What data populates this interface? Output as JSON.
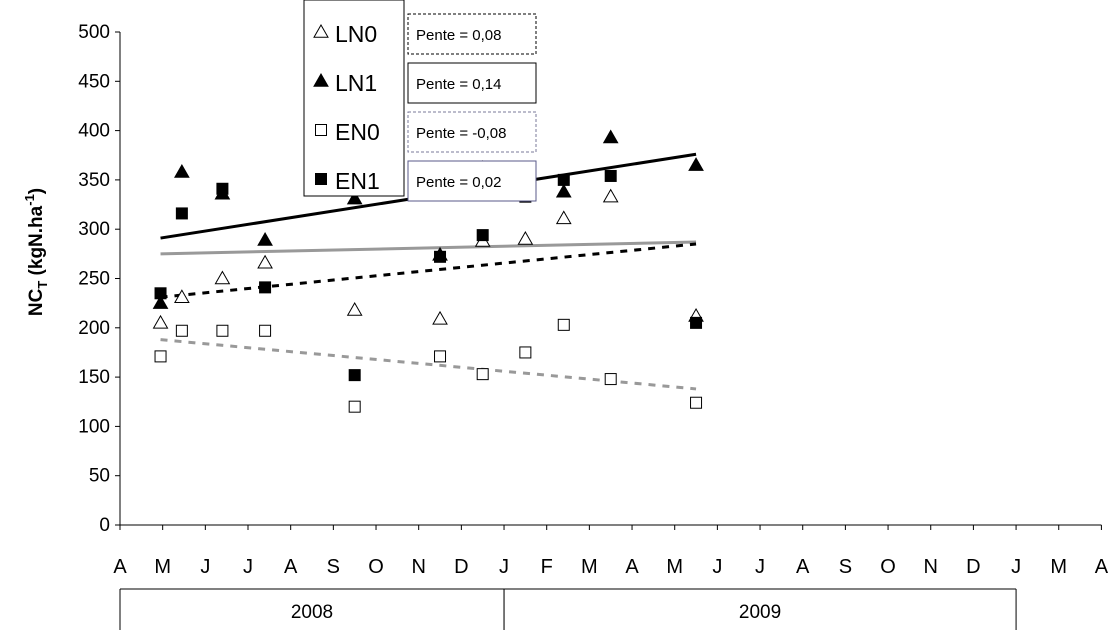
{
  "chart_data": {
    "type": "scatter",
    "ylabel_main": "NC",
    "ylabel_sub": "T",
    "ylabel_unit_open": " (kgN.ha",
    "ylabel_sup": "-1",
    "ylabel_unit_close": ")",
    "ylim": [
      0,
      500
    ],
    "y_ticks": [
      0,
      50,
      100,
      150,
      200,
      250,
      300,
      350,
      400,
      450,
      500
    ],
    "x_month_labels": [
      "A",
      "M",
      "J",
      "J",
      "A",
      "S",
      "O",
      "N",
      "D",
      "J",
      "F",
      "M",
      "A",
      "M",
      "J",
      "J",
      "A",
      "S",
      "O",
      "N",
      "D",
      "J",
      "M",
      "A"
    ],
    "year_labels": [
      "2008",
      "2009"
    ],
    "grid": false,
    "legend_position": "top-left",
    "series": [
      {
        "name": "LN0",
        "marker": "open-triangle",
        "slope_label": "Pente = 0,08",
        "points": [
          [
            0.95,
            205
          ],
          [
            1.45,
            231
          ],
          [
            2.4,
            250
          ],
          [
            3.4,
            266
          ],
          [
            5.5,
            218
          ],
          [
            7.5,
            209
          ],
          [
            8.5,
            288
          ],
          [
            9.5,
            290
          ],
          [
            10.4,
            311
          ],
          [
            11.5,
            333
          ],
          [
            13.5,
            212
          ]
        ]
      },
      {
        "name": "LN1",
        "marker": "filled-triangle",
        "slope_label": "Pente = 0,14",
        "points": [
          [
            0.95,
            225
          ],
          [
            1.45,
            358
          ],
          [
            2.4,
            336
          ],
          [
            3.4,
            289
          ],
          [
            5.5,
            331
          ],
          [
            7.5,
            274
          ],
          [
            8.5,
            362
          ],
          [
            9.5,
            354
          ],
          [
            10.4,
            338
          ],
          [
            11.5,
            393
          ],
          [
            13.5,
            365
          ]
        ]
      },
      {
        "name": "EN0",
        "marker": "open-square",
        "slope_label": "Pente = -0,08",
        "points": [
          [
            0.95,
            171
          ],
          [
            1.45,
            197
          ],
          [
            2.4,
            197
          ],
          [
            3.4,
            197
          ],
          [
            5.5,
            120
          ],
          [
            7.5,
            171
          ],
          [
            8.5,
            153
          ],
          [
            9.5,
            175
          ],
          [
            10.4,
            203
          ],
          [
            11.5,
            148
          ],
          [
            13.5,
            124
          ]
        ]
      },
      {
        "name": "EN1",
        "marker": "filled-square",
        "slope_label": "Pente = 0,02",
        "points": [
          [
            0.95,
            235
          ],
          [
            1.45,
            316
          ],
          [
            2.4,
            341
          ],
          [
            3.4,
            241
          ],
          [
            5.5,
            152
          ],
          [
            7.5,
            272
          ],
          [
            8.5,
            294
          ],
          [
            9.5,
            333
          ],
          [
            10.4,
            350
          ],
          [
            11.5,
            354
          ],
          [
            13.5,
            205
          ]
        ]
      }
    ],
    "trend_lines": [
      {
        "series": "LN1",
        "style": "solid",
        "color": "#000000",
        "from": [
          0.95,
          291
        ],
        "to": [
          13.5,
          376
        ]
      },
      {
        "series": "EN1",
        "style": "solid",
        "color": "#999999",
        "from": [
          0.95,
          275
        ],
        "to": [
          13.5,
          287
        ]
      },
      {
        "series": "LN0",
        "style": "dashed",
        "color": "#000000",
        "from": [
          0.95,
          231
        ],
        "to": [
          13.5,
          285
        ]
      },
      {
        "series": "EN0",
        "style": "dashed",
        "color": "#999999",
        "from": [
          0.95,
          188
        ],
        "to": [
          13.5,
          138
        ]
      }
    ],
    "slope_box_styles": [
      {
        "border": "#000000",
        "dash": "3,2"
      },
      {
        "border": "#000000",
        "dash": ""
      },
      {
        "border": "#7a7a9a",
        "dash": "3,2"
      },
      {
        "border": "#5a5a8a",
        "dash": ""
      }
    ]
  }
}
